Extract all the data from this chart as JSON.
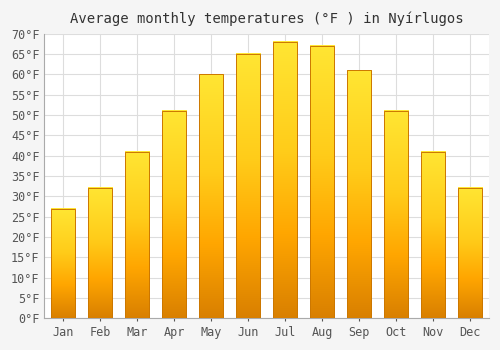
{
  "title": "Average monthly temperatures (°F ) in Nyírlugos",
  "months": [
    "Jan",
    "Feb",
    "Mar",
    "Apr",
    "May",
    "Jun",
    "Jul",
    "Aug",
    "Sep",
    "Oct",
    "Nov",
    "Dec"
  ],
  "values": [
    27,
    32,
    41,
    51,
    60,
    65,
    68,
    67,
    61,
    51,
    41,
    32
  ],
  "bar_color_top": "#FFD966",
  "bar_color_mid": "#FFA500",
  "bar_color_bottom": "#E08000",
  "background_color": "#f5f5f5",
  "plot_bg_color": "#ffffff",
  "grid_color": "#dddddd",
  "border_color": "#aaaaaa",
  "ylim": [
    0,
    70
  ],
  "yticks": [
    0,
    5,
    10,
    15,
    20,
    25,
    30,
    35,
    40,
    45,
    50,
    55,
    60,
    65,
    70
  ],
  "title_fontsize": 10,
  "tick_fontsize": 8.5,
  "font_family": "monospace",
  "bar_width": 0.65
}
